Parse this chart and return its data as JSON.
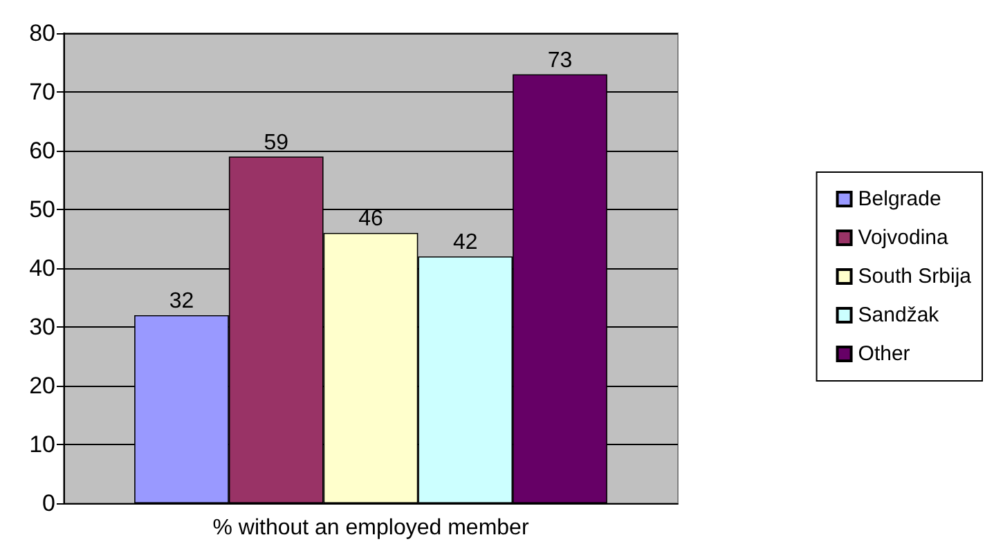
{
  "chart_data": {
    "type": "bar",
    "categories": [
      "% without an employed member"
    ],
    "series": [
      {
        "name": "Belgrade",
        "color": "#9999ff",
        "values": [
          32
        ]
      },
      {
        "name": "Vojvodina",
        "color": "#993366",
        "values": [
          59
        ]
      },
      {
        "name": "South Srbija",
        "color": "#ffffcc",
        "values": [
          46
        ]
      },
      {
        "name": "Sandžak",
        "color": "#ccffff",
        "values": [
          42
        ]
      },
      {
        "name": "Other",
        "color": "#660066",
        "values": [
          73
        ]
      }
    ],
    "ylim": [
      0,
      80
    ],
    "yticks": [
      0,
      10,
      20,
      30,
      40,
      50,
      60,
      70,
      80
    ],
    "grid": "y",
    "legend": "right",
    "data_labels": true
  }
}
